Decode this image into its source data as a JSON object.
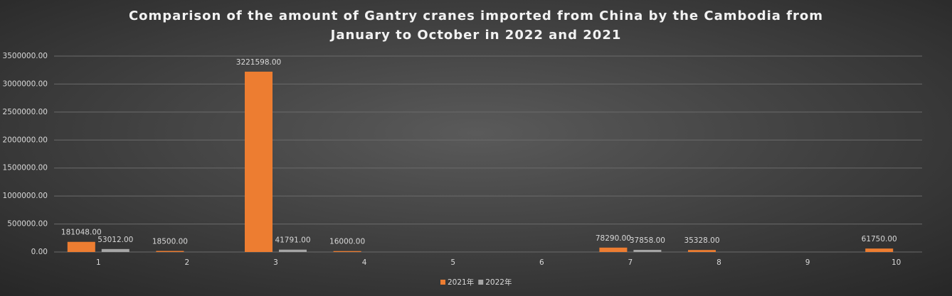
{
  "chart_data": {
    "type": "bar",
    "title": "Comparison of the amount of Gantry cranes imported from China by the Cambodia from January to October in 2022 and 2021",
    "categories": [
      "1",
      "2",
      "3",
      "4",
      "5",
      "6",
      "7",
      "8",
      "9",
      "10"
    ],
    "series": [
      {
        "name": "2021年",
        "color": "#ed7d31",
        "values": [
          181048,
          18500,
          3221598,
          16000,
          null,
          null,
          78290,
          35328,
          null,
          61750
        ],
        "value_labels": [
          "181048.00",
          "18500.00",
          "3221598.00",
          "16000.00",
          null,
          null,
          "78290.00",
          "35328.00",
          null,
          "61750.00"
        ]
      },
      {
        "name": "2022年",
        "color": "#a5a5a5",
        "values": [
          53012,
          null,
          41791,
          null,
          null,
          null,
          37858,
          null,
          null,
          null
        ],
        "value_labels": [
          "53012.00",
          null,
          "41791.00",
          null,
          null,
          null,
          "37858.00",
          null,
          null,
          null
        ]
      }
    ],
    "ylim": [
      0,
      3500000
    ],
    "yticks": [
      {
        "value": 0,
        "label": "0.00"
      },
      {
        "value": 500000,
        "label": "500000.00"
      },
      {
        "value": 1000000,
        "label": "1000000.00"
      },
      {
        "value": 1500000,
        "label": "1500000.00"
      },
      {
        "value": 2000000,
        "label": "2000000.00"
      },
      {
        "value": 2500000,
        "label": "2500000.00"
      },
      {
        "value": 3000000,
        "label": "3000000.00"
      },
      {
        "value": 3500000,
        "label": "3500000.00"
      }
    ],
    "grid": true,
    "legend": "bottom"
  }
}
